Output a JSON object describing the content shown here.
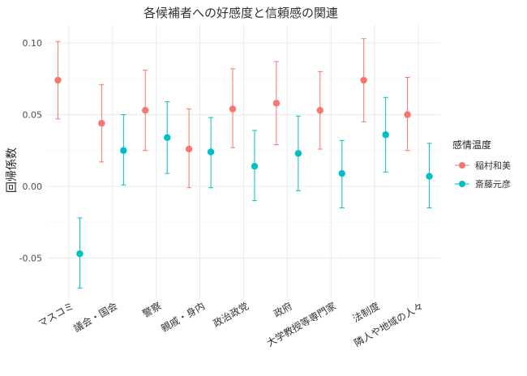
{
  "chart_data": {
    "type": "scatter",
    "title": "各候補者への好感度と信頼感の関連",
    "xlabel": "",
    "ylabel": "回帰係数",
    "ylim": [
      -0.078,
      0.113
    ],
    "yticks": [
      0.1,
      0.05,
      0.0,
      -0.05
    ],
    "ytick_labels": [
      "0.10",
      "0.05",
      "0.00",
      "-0.05"
    ],
    "categories": [
      "マスコミ",
      "議会・国会",
      "警察",
      "親戚・身内",
      "政治政党",
      "政府",
      "大学教授等専門家",
      "法制度",
      "隣人や地域の人々"
    ],
    "grid": true,
    "legend": {
      "title": "感情温度",
      "position": "right"
    },
    "series": [
      {
        "name": "稲村和美",
        "color": "#F8766D",
        "values": [
          0.074,
          0.044,
          0.053,
          0.026,
          0.054,
          0.058,
          0.053,
          0.074,
          0.05
        ],
        "lower": [
          0.047,
          0.017,
          0.025,
          -0.001,
          0.027,
          0.029,
          0.026,
          0.045,
          0.025
        ],
        "upper": [
          0.101,
          0.071,
          0.081,
          0.054,
          0.082,
          0.087,
          0.08,
          0.103,
          0.076
        ]
      },
      {
        "name": "斎藤元彦",
        "color": "#00BFC4",
        "values": [
          -0.047,
          0.025,
          0.034,
          0.024,
          0.014,
          0.023,
          0.009,
          0.036,
          0.007
        ],
        "lower": [
          -0.071,
          0.001,
          0.009,
          -0.001,
          -0.01,
          -0.003,
          -0.015,
          0.01,
          -0.015
        ],
        "upper": [
          -0.022,
          0.05,
          0.059,
          0.048,
          0.039,
          0.049,
          0.032,
          0.062,
          0.03
        ]
      }
    ]
  }
}
